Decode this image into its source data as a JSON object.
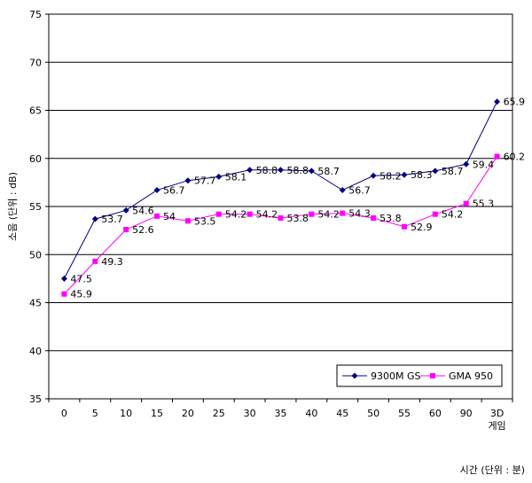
{
  "chart_data": {
    "type": "line",
    "categories": [
      "0",
      "5",
      "10",
      "15",
      "20",
      "25",
      "30",
      "35",
      "40",
      "45",
      "50",
      "55",
      "60",
      "90",
      "3D\n게임"
    ],
    "series": [
      {
        "name": "9300M GS",
        "color": "#000080",
        "marker": "diamond",
        "values": [
          47.5,
          53.7,
          54.6,
          56.7,
          57.7,
          58.1,
          58.8,
          58.8,
          58.7,
          56.7,
          58.2,
          58.3,
          58.7,
          59.4,
          65.9
        ]
      },
      {
        "name": "GMA 950",
        "color": "#ff00ff",
        "marker": "square",
        "values": [
          45.9,
          49.3,
          52.6,
          54,
          53.5,
          54.2,
          54.2,
          53.8,
          54.2,
          54.3,
          53.8,
          52.9,
          54.2,
          55.3,
          60.2
        ]
      }
    ],
    "xlabel": "시간 (단위 : 분)",
    "ylabel": "소음 (단위 : dB)",
    "ylim": [
      35,
      75
    ],
    "yticks": [
      "35",
      "40",
      "45",
      "50",
      "55",
      "60",
      "65",
      "70",
      "75"
    ],
    "grid": "horizontal",
    "legend_position": "bottom-right"
  }
}
